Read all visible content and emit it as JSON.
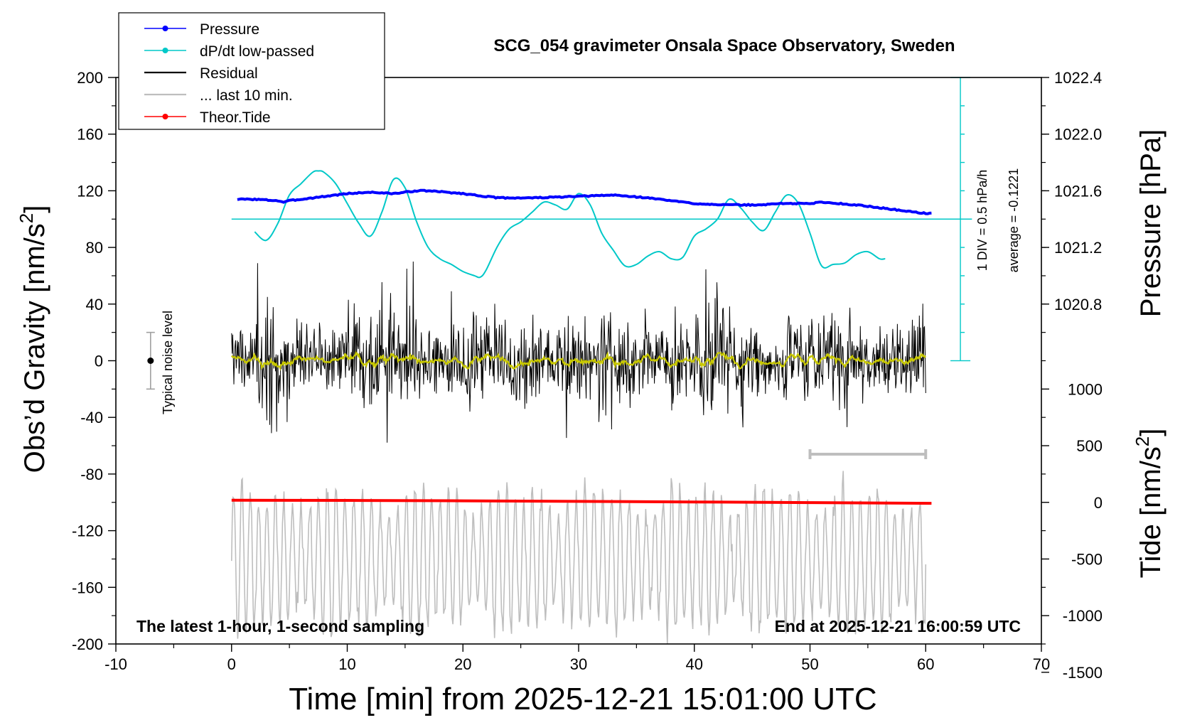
{
  "chart_data": {
    "type": "line",
    "title": "SCG_054 gravimeter Onsala Space Observatory, Sweden",
    "xlabel": "Time [min] from 2025-12-21 15:01:00 UTC",
    "xlim": [
      -10,
      70
    ],
    "x_ticks": [
      "-10",
      "0",
      "10",
      "20",
      "30",
      "40",
      "50",
      "60",
      "70"
    ],
    "ylabel_main": "Obs’d Gravity [nm/s",
    "ylabel_sup": "2",
    "ylabel_close": "]",
    "ylim": [
      -200,
      200
    ],
    "y_ticks": [
      "200",
      "160",
      "120",
      "80",
      "40",
      "0",
      "-40",
      "-80",
      "-120",
      "-160",
      "-200"
    ],
    "pressure_axis": {
      "label": "Pressure [hPa]",
      "ticks": [
        "1022.4",
        "1022.0",
        "1021.6",
        "1021.2",
        "1020.8"
      ],
      "tick_values": [
        1022.4,
        1022.0,
        1021.6,
        1021.2,
        1020.8
      ],
      "ref_value": 1021.6,
      "ref_gravity": 120,
      "gravity_per_hpa": 100
    },
    "tide_axis": {
      "label_main": "Tide [nm/s",
      "label_sup": "2",
      "label_close": "]",
      "ticks": [
        "1000",
        "500",
        "0",
        "-500",
        "-1000",
        "-1500"
      ],
      "tick_values": [
        1000,
        500,
        0,
        -500,
        -1000,
        -1500
      ],
      "ref_gravity": -100,
      "gravity_per_unit": 0.08
    },
    "dpdt_scale": {
      "label1": "1 DIV = 0.5 hPa/h",
      "label2": "average = -0.1221",
      "zero_gravity": 100,
      "top_gravity": 200,
      "bottom_gravity": 0,
      "divisions": 10
    },
    "legend": {
      "placement": "top-left",
      "entries": [
        {
          "name": "Pressure",
          "color": "#0000ff",
          "marker": true
        },
        {
          "name": "dP/dt low-passed",
          "color": "#00c8c8",
          "marker": true
        },
        {
          "name": "Residual",
          "color": "#000000",
          "marker": false
        },
        {
          "name": "... last 10 min.",
          "color": "#bebebe",
          "marker": false
        },
        {
          "name": "Theor.Tide",
          "color": "#ff0000",
          "marker": true
        }
      ]
    },
    "noise_level": {
      "label": "Typical noise level",
      "x": -7,
      "center": 0,
      "low": -20,
      "high": 20
    },
    "last10_bar": {
      "x_start": 50,
      "x_end": 60,
      "y": -66
    },
    "footer_left": "The latest 1-hour, 1-second sampling",
    "footer_right": "End at 2025-12-21 16:00:59 UTC",
    "series": [
      {
        "name": "Pressure",
        "color": "#0000ff",
        "x": [
          0.5,
          2,
          4,
          4.5,
          5,
          7,
          10,
          12,
          14,
          16,
          17,
          20,
          23,
          26,
          30,
          33,
          36,
          40,
          43,
          46,
          47,
          48,
          50,
          51,
          54,
          57,
          60,
          60.5
        ],
        "y": [
          114,
          114,
          113,
          112,
          113,
          115,
          118,
          119,
          118,
          120,
          120,
          118,
          115,
          115,
          116,
          117,
          115,
          111,
          110,
          110,
          111,
          111,
          111,
          112,
          110,
          107,
          104,
          104
        ]
      },
      {
        "name": "dP/dt low-passed",
        "color": "#00c8c8",
        "x": [
          2,
          3,
          4,
          5,
          6,
          7,
          7.5,
          8,
          9,
          10,
          11,
          12,
          13,
          14,
          15,
          16,
          17,
          18,
          19,
          20,
          21,
          21.5,
          22,
          23,
          24,
          25,
          26,
          27,
          28,
          29,
          30,
          31,
          32,
          33,
          34,
          35,
          36,
          37,
          38,
          39,
          40,
          41,
          42,
          43,
          44,
          45,
          46,
          47,
          48,
          49,
          50,
          51,
          52,
          53,
          54,
          55,
          56,
          56.5
        ],
        "y": [
          91,
          85,
          97,
          117,
          125,
          133,
          134,
          133,
          125,
          111,
          97,
          88,
          105,
          128,
          122,
          98,
          80,
          72,
          68,
          63,
          60,
          59,
          64,
          81,
          93,
          98,
          105,
          112,
          110,
          107,
          118,
          110,
          90,
          78,
          67,
          68,
          74,
          77,
          72,
          73,
          88,
          93,
          100,
          114,
          108,
          98,
          92,
          105,
          117,
          111,
          90,
          67,
          68,
          69,
          75,
          77,
          72,
          72
        ]
      },
      {
        "name": "Theor.Tide",
        "color": "#ff0000",
        "x": [
          0,
          10,
          20,
          30,
          40,
          50,
          60.5
        ],
        "y": [
          -98.5,
          -98.6,
          -98.9,
          -99.3,
          -99.7,
          -100.2,
          -100.7
        ]
      }
    ],
    "residual": {
      "color": "#000000",
      "x_start": 0,
      "x_end": 60,
      "samples": 1200,
      "typical_amplitude": 15,
      "max_amplitude": 70,
      "seed": 7
    },
    "smoothed_residual": {
      "color": "#c8c800",
      "typical_amplitude": 2.5
    },
    "last10_trace": {
      "color": "#bebebe",
      "x_start": 0,
      "x_end": 60,
      "samples": 900,
      "base_tide": -500,
      "amplitude_tide": 700,
      "seed": 11
    }
  }
}
